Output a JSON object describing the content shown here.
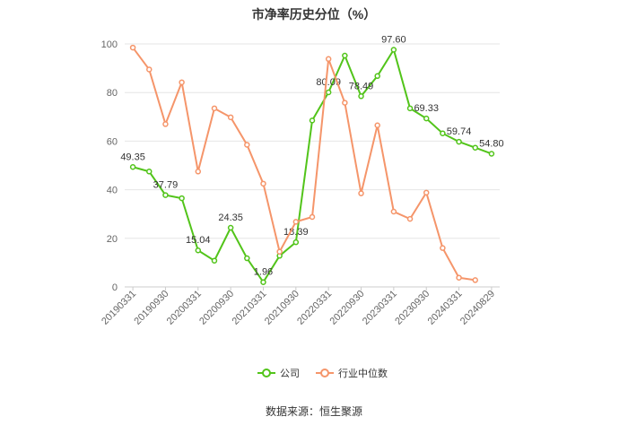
{
  "chart_data": {
    "type": "line",
    "title": "市净率历史分位（%）",
    "ylim": [
      0,
      100
    ],
    "yticks": [
      0,
      20,
      40,
      60,
      80,
      100
    ],
    "x": [
      "20190331",
      "20190630",
      "20190930",
      "20191231",
      "20200331",
      "20200630",
      "20200930",
      "20201231",
      "20210331",
      "20210630",
      "20210930",
      "20211231",
      "20220331",
      "20220630",
      "20220930",
      "20221231",
      "20230331",
      "20230630",
      "20230930",
      "20231231",
      "20240331",
      "20240630",
      "20240829"
    ],
    "x_tick_labels": [
      "20190331",
      "20190930",
      "20200331",
      "20200930",
      "20210331",
      "20210930",
      "20220331",
      "20220930",
      "20230331",
      "20230930",
      "20240331",
      "20240829"
    ],
    "grid": true,
    "legend_position": "bottom",
    "series": [
      {
        "name": "公司",
        "color": "#52c41a",
        "values": [
          49.35,
          47.5,
          37.79,
          36.5,
          15.04,
          10.8,
          24.35,
          11.8,
          1.96,
          12.8,
          18.39,
          68.5,
          80.09,
          95.2,
          78.49,
          86.8,
          97.6,
          73.5,
          69.33,
          63.2,
          59.74,
          57.3,
          54.8
        ],
        "labels": {
          "0": "49.35",
          "2": "37.79",
          "4": "15.04",
          "6": "24.35",
          "8": "1.96",
          "10": "18.39",
          "12": "80.09",
          "14": "78.49",
          "16": "97.60",
          "18": "69.33",
          "20": "59.74",
          "22": "54.80"
        }
      },
      {
        "name": "行业中位数",
        "color": "#f5956a",
        "values": [
          98.5,
          89.5,
          67,
          84.2,
          47.5,
          73.5,
          69.8,
          58.5,
          42.5,
          14.5,
          26.8,
          28.8,
          93.8,
          75.8,
          38.5,
          66.5,
          31,
          28,
          38.8,
          16,
          3.8,
          2.8,
          null
        ]
      }
    ]
  },
  "source_text": "数据来源：恒生聚源"
}
